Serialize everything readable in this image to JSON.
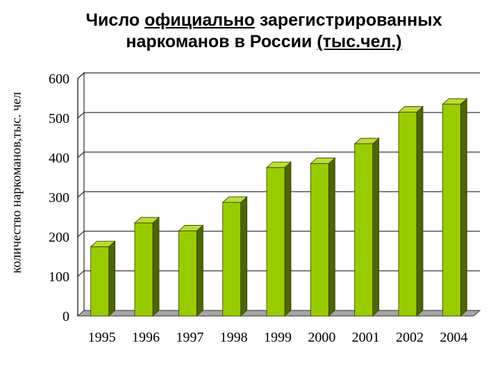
{
  "title": {
    "line1_pre": "Число ",
    "line1_underlined": "официально",
    "line1_post": " зарегистрированных",
    "line2_pre": "наркоманов в России ",
    "line2_underlined": "(тыс.чел.)"
  },
  "chart_data": {
    "type": "bar",
    "title": "Число официально зарегистрированных наркоманов в России (тыс.чел.)",
    "ylabel": "количество наркоманов,тыс. чел",
    "xlabel": "",
    "categories": [
      "1995",
      "1996",
      "1997",
      "1998",
      "1999",
      "2000",
      "2001",
      "2002",
      "2004"
    ],
    "values": [
      175,
      235,
      215,
      287,
      375,
      385,
      435,
      515,
      535
    ],
    "ylim": [
      0,
      600
    ],
    "yticks": [
      0,
      100,
      200,
      300,
      400,
      500,
      600
    ],
    "grid": true,
    "legend": "none",
    "colors": {
      "bar_front": "#99cc00",
      "bar_side": "#4d6600",
      "bar_top": "#bbdd33",
      "bar_outline": "#2f3a00",
      "grid": "#000000",
      "floor": "#a6a6a6"
    }
  }
}
